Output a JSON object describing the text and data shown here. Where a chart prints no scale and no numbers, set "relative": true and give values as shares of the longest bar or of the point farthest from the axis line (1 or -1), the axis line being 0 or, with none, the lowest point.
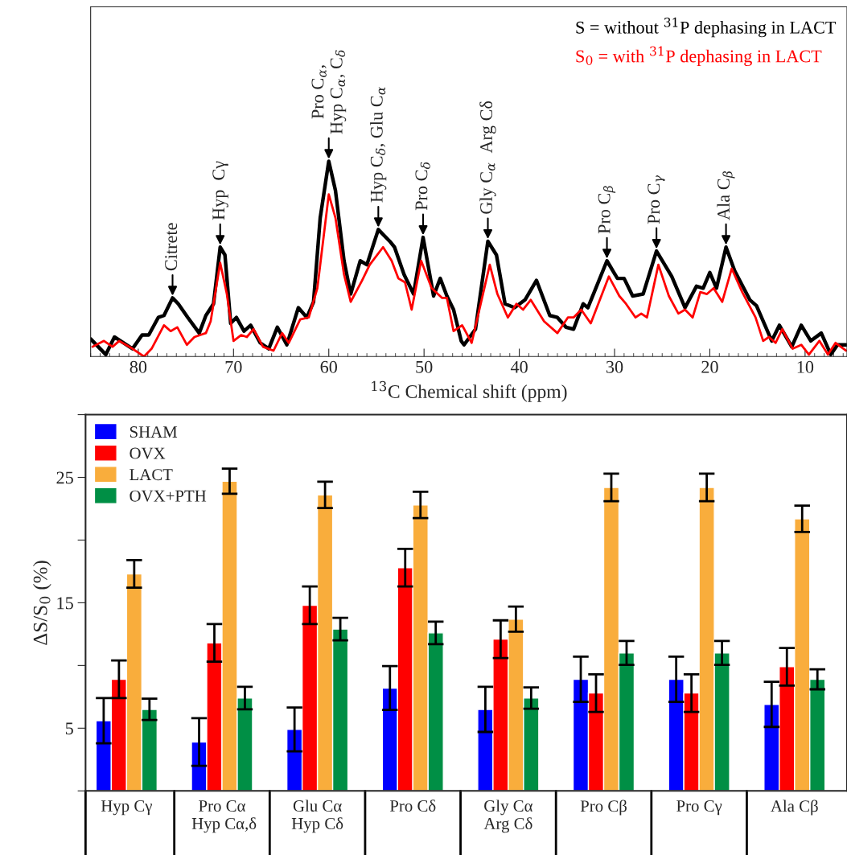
{
  "chart_data": [
    {
      "type": "line",
      "relative": true,
      "xlabel": "$^{13}$C Chemical shift (ppm)",
      "xlim": [
        85,
        5.6
      ],
      "xticks": [
        80,
        70,
        60,
        50,
        40,
        30,
        20,
        10
      ],
      "legend": "top right",
      "series": [
        {
          "name": "S = without $^{31}$P dephasing in LACT",
          "color": "#000000",
          "x": [
            85,
            83.4,
            82.5,
            80.6,
            79.6,
            78.9,
            77.9,
            77.3,
            76.4,
            75.8,
            74.8,
            73.6,
            72.9,
            72.1,
            71.4,
            70.9,
            70.3,
            69.7,
            68.9,
            68.2,
            67.2,
            66.3,
            65.4,
            64.4,
            63.2,
            62.3,
            61.6,
            60.9,
            60.0,
            59.3,
            58.4,
            57.7,
            56.7,
            56.0,
            54.8,
            53.6,
            53.1,
            52.1,
            51.1,
            50.1,
            49.0,
            48.3,
            47.6,
            46.9,
            46.1,
            45.8,
            44.6,
            43.3,
            42.4,
            41.5,
            40.5,
            39.4,
            38.2,
            36.8,
            36.0,
            35.1,
            34.3,
            33.3,
            32.8,
            30.8,
            29.7,
            29.0,
            28.1,
            27.0,
            25.6,
            24.0,
            22.6,
            21.4,
            20.7,
            20.0,
            19.3,
            18.3,
            17.4,
            15.8,
            15.1,
            13.5,
            12.7,
            11.4,
            10.4,
            9.4,
            8.3,
            7.3,
            6.6,
            5.7
          ],
          "values": [
            0.09,
            0.01,
            0.1,
            0.04,
            0.11,
            0.11,
            0.2,
            0.21,
            0.3,
            0.27,
            0.2,
            0.12,
            0.21,
            0.27,
            0.56,
            0.52,
            0.17,
            0.2,
            0.13,
            0.16,
            0.07,
            0.04,
            0.15,
            0.06,
            0.25,
            0.2,
            0.28,
            0.71,
            1.0,
            0.85,
            0.49,
            0.32,
            0.49,
            0.47,
            0.65,
            0.59,
            0.56,
            0.42,
            0.32,
            0.61,
            0.31,
            0.4,
            0.31,
            0.24,
            0.08,
            0.06,
            0.14,
            0.59,
            0.52,
            0.27,
            0.25,
            0.29,
            0.39,
            0.21,
            0.2,
            0.15,
            0.14,
            0.27,
            0.25,
            0.49,
            0.4,
            0.4,
            0.31,
            0.32,
            0.54,
            0.41,
            0.25,
            0.36,
            0.35,
            0.43,
            0.35,
            0.56,
            0.44,
            0.29,
            0.26,
            0.08,
            0.16,
            0.05,
            0.16,
            0.08,
            0.12,
            0.01,
            0.06,
            0.06
          ]
        },
        {
          "name": "S$_{0}$ = with $^{31}$P dephasing in LACT",
          "color": "#ff0000",
          "x": [
            84.8,
            83.6,
            82.7,
            82.0,
            80.6,
            79.4,
            78.6,
            77.3,
            76.6,
            75.9,
            74.9,
            74.1,
            72.9,
            72.4,
            71.4,
            70.7,
            70.0,
            69.2,
            68.6,
            67.9,
            66.9,
            65.8,
            64.9,
            64.2,
            63.0,
            62.1,
            61.2,
            60.0,
            59.3,
            58.4,
            57.7,
            56.5,
            55.7,
            54.3,
            53.4,
            52.7,
            52.0,
            51.3,
            50.3,
            49.2,
            48.1,
            47.6,
            46.9,
            46.0,
            45.0,
            43.1,
            42.3,
            41.2,
            40.3,
            39.6,
            38.8,
            37.4,
            36.0,
            34.9,
            34.3,
            33.5,
            32.5,
            30.6,
            29.5,
            28.8,
            27.8,
            27.2,
            26.6,
            25.4,
            24.3,
            23.3,
            22.6,
            21.8,
            21.0,
            20.3,
            19.6,
            18.7,
            17.7,
            16.6,
            15.2,
            14.4,
            13.8,
            13.1,
            12.4,
            11.3,
            10.4,
            9.6,
            8.5,
            7.6,
            6.8,
            5.7
          ],
          "values": [
            0.05,
            0.08,
            0.05,
            0.08,
            0.04,
            0.0,
            0.04,
            0.16,
            0.13,
            0.15,
            0.06,
            0.1,
            0.12,
            0.18,
            0.48,
            0.32,
            0.08,
            0.11,
            0.1,
            0.14,
            0.05,
            0.03,
            0.12,
            0.07,
            0.19,
            0.2,
            0.35,
            0.83,
            0.71,
            0.42,
            0.28,
            0.39,
            0.47,
            0.56,
            0.49,
            0.4,
            0.38,
            0.24,
            0.49,
            0.35,
            0.3,
            0.3,
            0.13,
            0.16,
            0.07,
            0.47,
            0.32,
            0.2,
            0.27,
            0.24,
            0.29,
            0.18,
            0.12,
            0.2,
            0.2,
            0.24,
            0.17,
            0.41,
            0.31,
            0.27,
            0.2,
            0.22,
            0.2,
            0.47,
            0.31,
            0.22,
            0.24,
            0.2,
            0.33,
            0.32,
            0.35,
            0.28,
            0.45,
            0.33,
            0.2,
            0.08,
            0.1,
            0.07,
            0.14,
            0.04,
            0.06,
            0.01,
            0.08,
            0.01,
            0.07,
            0.03
          ]
        }
      ],
      "annotations": [
        {
          "text": "Citrete",
          "x": 76.4,
          "y": 0.3
        },
        {
          "text": "Hyp  Cγ",
          "x": 71.4,
          "y": 0.56
        },
        {
          "text": "Pro C$_{α}$,\nHyp C$_{α}$, C$_{δ}$",
          "x": 60.0,
          "y": 1.0
        },
        {
          "text": "Hyp C$_{δ}$, Glu C$_{α}$",
          "x": 54.8,
          "y": 0.65
        },
        {
          "text": "Pro C$_{δ}$",
          "x": 50.1,
          "y": 0.61
        },
        {
          "text": "Gly C$_{α}$  Arg Cδ",
          "x": 43.3,
          "y": 0.59
        },
        {
          "text": "Pro C$_{β}$",
          "x": 30.8,
          "y": 0.49
        },
        {
          "text": "Pro C$_{γ}$",
          "x": 25.6,
          "y": 0.54
        },
        {
          "text": "Ala C$_{β}$",
          "x": 18.3,
          "y": 0.56
        }
      ]
    },
    {
      "type": "bar",
      "ylabel": "ΔS/S$_{0}$ (%)",
      "ylim": [
        0,
        30
      ],
      "yticks": [
        {
          "value": 0,
          "label": null
        },
        5,
        {
          "value": 10,
          "label": null
        },
        15,
        {
          "value": 20,
          "label": null
        },
        25,
        {
          "value": 30,
          "label": null
        }
      ],
      "legend": "top left",
      "categories": [
        "Hyp Cγ",
        "Pro Cα\n Hyp Cα,δ",
        "Glu Cα\nHyp Cδ",
        "Pro Cδ",
        "Gly Cα\nArg Cδ",
        "Pro Cβ",
        "Pro Cγ",
        "Ala Cβ"
      ],
      "series": [
        {
          "name": "SHAM",
          "color": "#0000ff",
          "values": [
            5.6,
            3.9,
            4.9,
            8.2,
            6.5,
            8.9,
            8.9,
            6.9
          ],
          "errors": [
            1.8,
            1.9,
            1.75,
            1.75,
            1.8,
            1.8,
            1.8,
            1.8
          ]
        },
        {
          "name": "OVX",
          "color": "#ff0000",
          "values": [
            8.9,
            11.8,
            14.8,
            17.8,
            12.1,
            7.8,
            7.8,
            9.9
          ],
          "errors": [
            1.5,
            1.5,
            1.5,
            1.5,
            1.5,
            1.5,
            1.5,
            1.5
          ]
        },
        {
          "name": "LACT",
          "color": "#f9ad3c",
          "values": [
            17.3,
            24.7,
            23.6,
            22.8,
            13.7,
            24.2,
            24.2,
            21.7
          ],
          "errors": [
            1.1,
            1.0,
            1.05,
            1.05,
            1.0,
            1.1,
            1.1,
            1.05
          ]
        },
        {
          "name": "OVX+PTH",
          "color": "#008f45",
          "values": [
            6.5,
            7.4,
            12.9,
            12.6,
            7.4,
            11.0,
            11.0,
            8.9
          ],
          "errors": [
            0.85,
            0.9,
            0.9,
            0.9,
            0.85,
            0.95,
            0.95,
            0.8
          ]
        }
      ]
    }
  ]
}
